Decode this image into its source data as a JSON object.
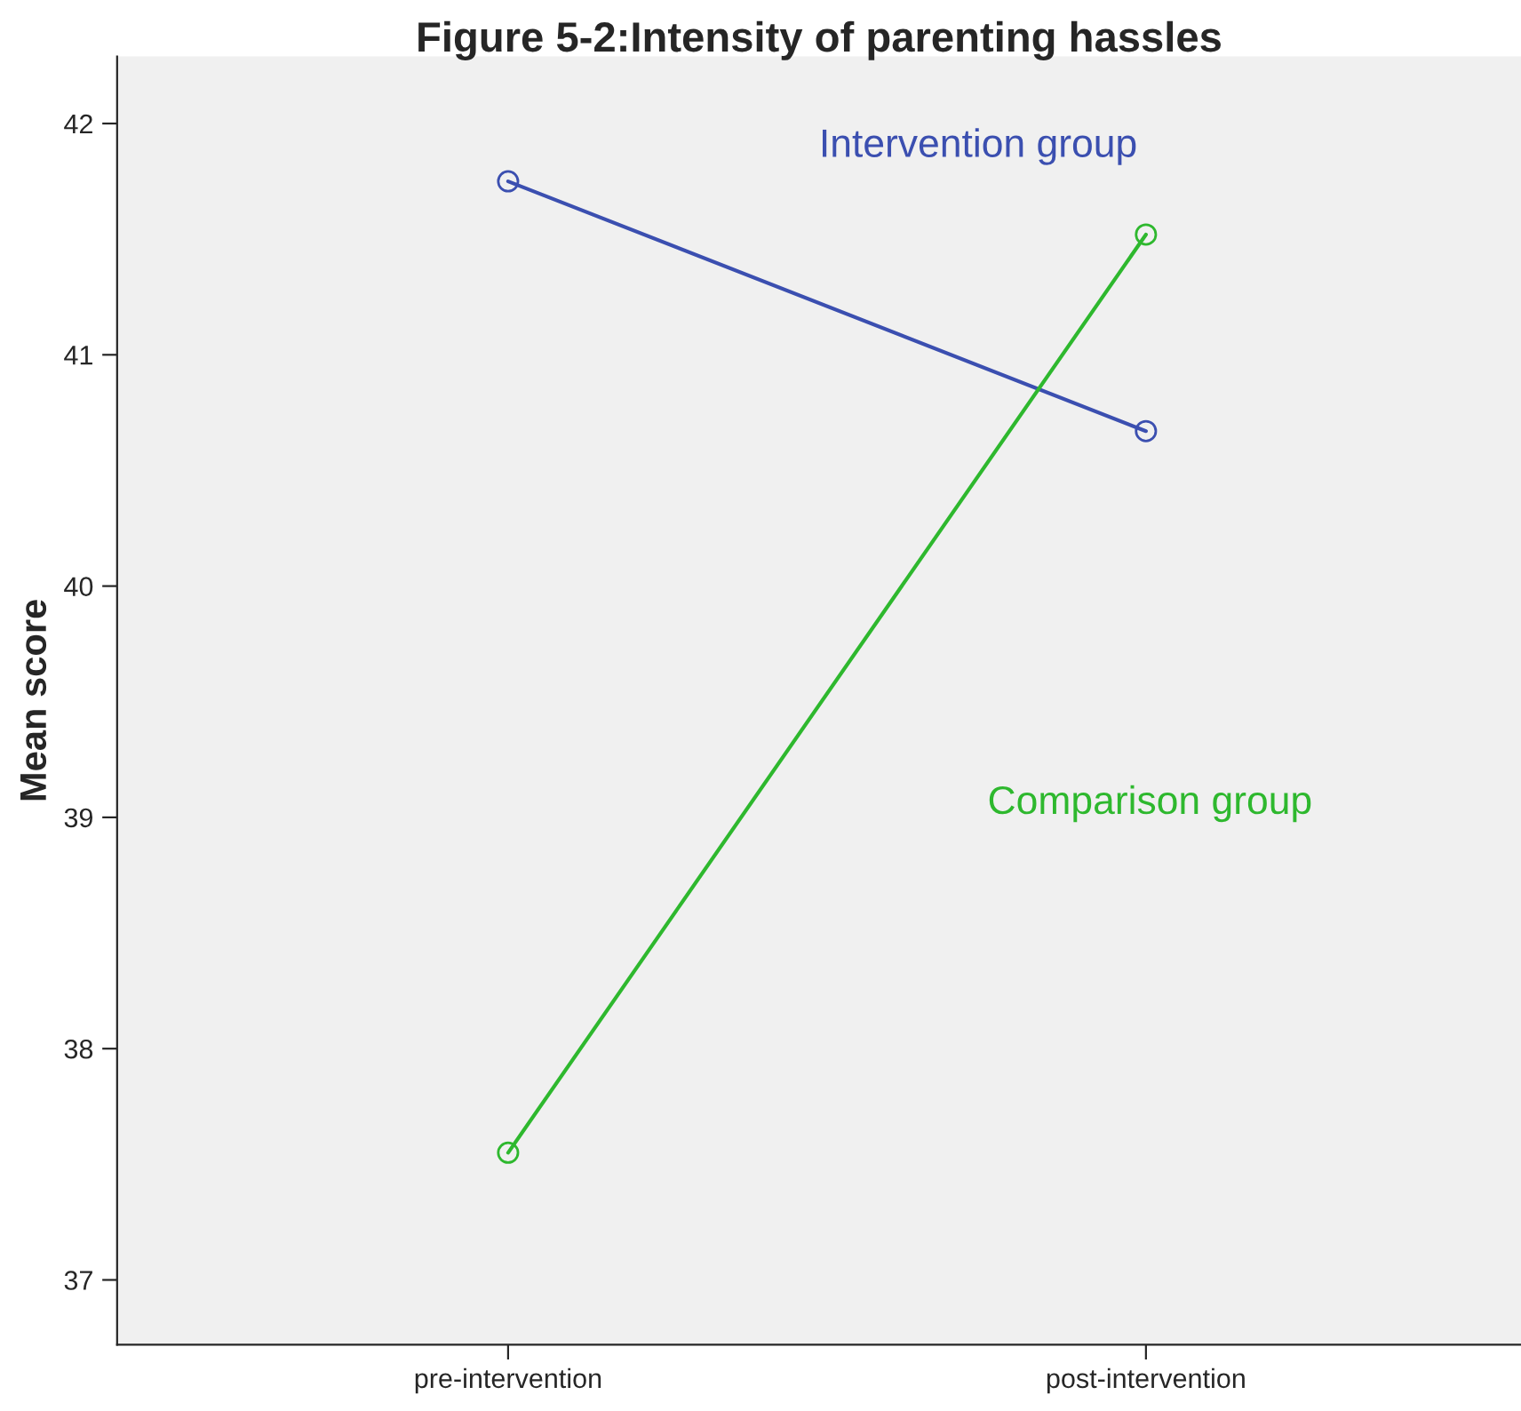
{
  "chart_data": {
    "type": "line",
    "title": "Figure 5-2:Intensity of parenting hassles",
    "ylabel": "Mean score",
    "categories": [
      "pre-intervention",
      "post-intervention"
    ],
    "series": [
      {
        "name": "Intervention group",
        "color": "#3b4fb0",
        "values": [
          41.75,
          40.67
        ]
      },
      {
        "name": "Comparison group",
        "color": "#2eb82e",
        "values": [
          37.55,
          41.52
        ]
      }
    ],
    "ylim": [
      36.72,
      42.29
    ],
    "yticks": [
      37,
      38,
      39,
      40,
      41,
      42
    ],
    "marker": "circle",
    "line_style": "solid",
    "grid": false,
    "legend": false
  }
}
